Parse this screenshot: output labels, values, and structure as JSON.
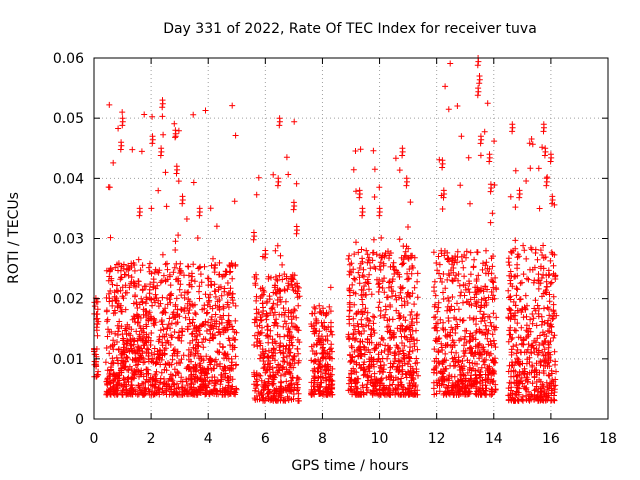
{
  "chart_data": {
    "type": "scatter",
    "title": "Day 331 of 2022, Rate Of TEC Index for receiver tuva",
    "xlabel": "GPS time / hours",
    "ylabel": "ROTI / TECUs",
    "xlim": [
      0,
      18
    ],
    "ylim": [
      0,
      0.06
    ],
    "x_ticks": [
      "0",
      "2",
      "4",
      "6",
      "8",
      "10",
      "12",
      "14",
      "16",
      "18"
    ],
    "y_ticks": [
      "0",
      "0.01",
      "0.02",
      "0.03",
      "0.04",
      "0.05",
      "0.06"
    ],
    "grid": true,
    "marker": "plus",
    "color": "#ff0000",
    "segments": [
      {
        "x_range": [
          0.0,
          0.15
        ],
        "typical_range": [
          0.007,
          0.02
        ],
        "max": 0.024
      },
      {
        "x_range": [
          0.4,
          5.0
        ],
        "typical_range": [
          0.004,
          0.026
        ],
        "max": 0.053
      },
      {
        "x_range": [
          5.6,
          7.2
        ],
        "typical_range": [
          0.003,
          0.024
        ],
        "max": 0.05
      },
      {
        "x_range": [
          7.6,
          8.35
        ],
        "typical_range": [
          0.004,
          0.018
        ],
        "max": 0.023
      },
      {
        "x_range": [
          8.9,
          11.35
        ],
        "typical_range": [
          0.004,
          0.028
        ],
        "max": 0.046
      },
      {
        "x_range": [
          11.9,
          14.1
        ],
        "typical_range": [
          0.004,
          0.028
        ],
        "max": 0.06
      },
      {
        "x_range": [
          14.5,
          16.2
        ],
        "typical_range": [
          0.003,
          0.029
        ],
        "max": 0.05
      }
    ],
    "peaks": [
      {
        "x": 1.0,
        "y": 0.05
      },
      {
        "x": 0.95,
        "y": 0.046
      },
      {
        "x": 1.6,
        "y": 0.035
      },
      {
        "x": 2.05,
        "y": 0.047
      },
      {
        "x": 2.4,
        "y": 0.053
      },
      {
        "x": 2.35,
        "y": 0.045
      },
      {
        "x": 2.85,
        "y": 0.048
      },
      {
        "x": 2.9,
        "y": 0.042
      },
      {
        "x": 3.1,
        "y": 0.037
      },
      {
        "x": 3.7,
        "y": 0.035
      },
      {
        "x": 5.6,
        "y": 0.031
      },
      {
        "x": 6.0,
        "y": 0.028
      },
      {
        "x": 6.5,
        "y": 0.05
      },
      {
        "x": 6.45,
        "y": 0.04
      },
      {
        "x": 7.0,
        "y": 0.036
      },
      {
        "x": 7.1,
        "y": 0.032
      },
      {
        "x": 9.3,
        "y": 0.038
      },
      {
        "x": 9.4,
        "y": 0.035
      },
      {
        "x": 10.0,
        "y": 0.035
      },
      {
        "x": 10.8,
        "y": 0.045
      },
      {
        "x": 10.95,
        "y": 0.04
      },
      {
        "x": 12.2,
        "y": 0.043
      },
      {
        "x": 12.25,
        "y": 0.038
      },
      {
        "x": 13.45,
        "y": 0.06
      },
      {
        "x": 13.5,
        "y": 0.057
      },
      {
        "x": 13.45,
        "y": 0.055
      },
      {
        "x": 13.55,
        "y": 0.047
      },
      {
        "x": 13.85,
        "y": 0.044
      },
      {
        "x": 13.9,
        "y": 0.039
      },
      {
        "x": 14.65,
        "y": 0.049
      },
      {
        "x": 14.9,
        "y": 0.038
      },
      {
        "x": 15.75,
        "y": 0.049
      },
      {
        "x": 15.8,
        "y": 0.045
      },
      {
        "x": 16.0,
        "y": 0.044
      },
      {
        "x": 16.05,
        "y": 0.037
      },
      {
        "x": 15.85,
        "y": 0.04
      }
    ]
  }
}
